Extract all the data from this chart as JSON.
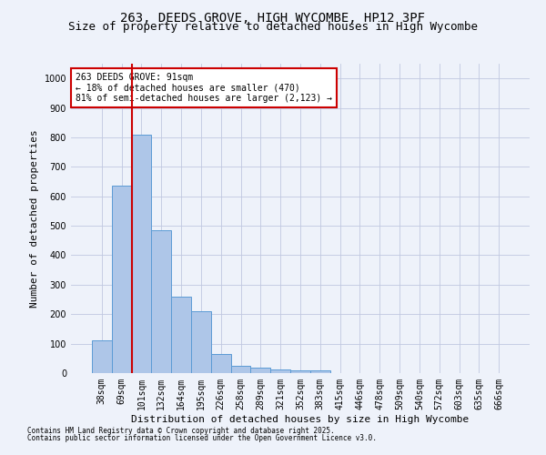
{
  "title1": "263, DEEDS GROVE, HIGH WYCOMBE, HP12 3PF",
  "title2": "Size of property relative to detached houses in High Wycombe",
  "xlabel": "Distribution of detached houses by size in High Wycombe",
  "ylabel": "Number of detached properties",
  "categories": [
    "38sqm",
    "69sqm",
    "101sqm",
    "132sqm",
    "164sqm",
    "195sqm",
    "226sqm",
    "258sqm",
    "289sqm",
    "321sqm",
    "352sqm",
    "383sqm",
    "415sqm",
    "446sqm",
    "478sqm",
    "509sqm",
    "540sqm",
    "572sqm",
    "603sqm",
    "635sqm",
    "666sqm"
  ],
  "values": [
    110,
    635,
    810,
    485,
    258,
    210,
    65,
    25,
    18,
    12,
    10,
    10,
    0,
    0,
    0,
    0,
    0,
    0,
    0,
    0,
    0
  ],
  "bar_color": "#aec6e8",
  "bar_edge_color": "#5b9bd5",
  "vline_x": 1.5,
  "vline_color": "#cc0000",
  "annotation_text": "263 DEEDS GROVE: 91sqm\n← 18% of detached houses are smaller (470)\n81% of semi-detached houses are larger (2,123) →",
  "annotation_box_color": "#ffffff",
  "annotation_box_edge": "#cc0000",
  "ylim": [
    0,
    1050
  ],
  "yticks": [
    0,
    100,
    200,
    300,
    400,
    500,
    600,
    700,
    800,
    900,
    1000
  ],
  "footer1": "Contains HM Land Registry data © Crown copyright and database right 2025.",
  "footer2": "Contains public sector information licensed under the Open Government Licence v3.0.",
  "bg_color": "#eef2fa",
  "title_fontsize": 10,
  "subtitle_fontsize": 9,
  "axis_label_fontsize": 8,
  "tick_fontsize": 7,
  "footer_fontsize": 5.5
}
